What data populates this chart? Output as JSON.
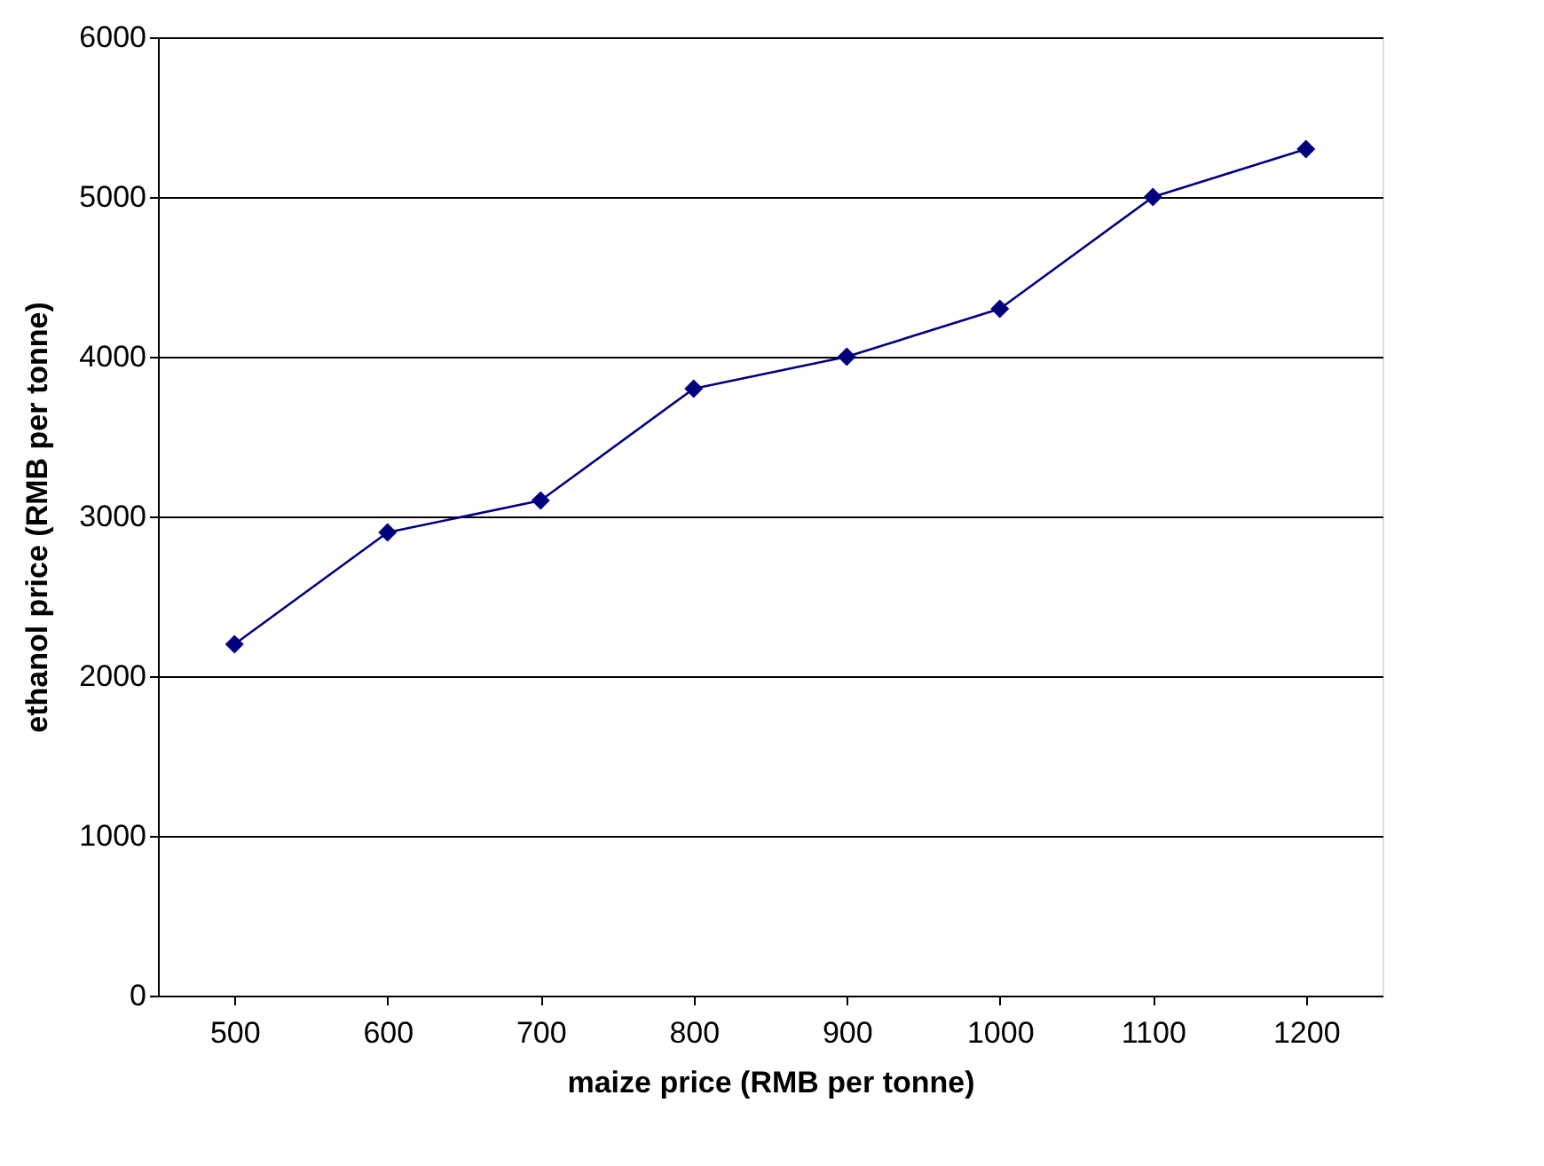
{
  "chart_data": {
    "type": "line",
    "xlabel": "maize price (RMB per tonne)",
    "ylabel": "ethanol price (RMB per tonne)",
    "categories": [
      "500",
      "600",
      "700",
      "800",
      "900",
      "1000",
      "1100",
      "1200"
    ],
    "series": [
      {
        "color": "#00007f",
        "values": [
          2200,
          2900,
          3100,
          3800,
          4000,
          4300,
          5000,
          5300
        ]
      }
    ],
    "ylim": [
      0,
      6000
    ],
    "yticks": [
      0,
      1000,
      2000,
      3000,
      4000,
      5000,
      6000
    ],
    "grid": "y",
    "legend": false,
    "marker": "diamond",
    "line_style": "solid"
  }
}
